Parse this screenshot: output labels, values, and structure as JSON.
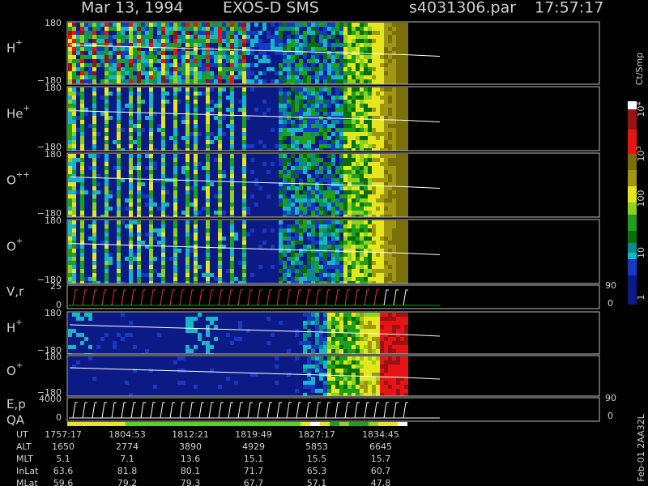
{
  "header": {
    "date": "Mar 13, 1994",
    "instrument": "EXOS-D SMS",
    "file": "s4031306.par",
    "time": "17:57:17"
  },
  "panels": [
    {
      "label": "H",
      "sup": "+",
      "top": "180",
      "bottom": "−180"
    },
    {
      "label": "He",
      "sup": "+",
      "top": "180",
      "bottom": "−180"
    },
    {
      "label": "O",
      "sup": "++",
      "top": "180",
      "bottom": "−180"
    },
    {
      "label": "O",
      "sup": "+",
      "top": "180",
      "bottom": "−180"
    },
    {
      "label": "V,r",
      "top": "25",
      "bottom": "0",
      "right_top": "90",
      "right_bottom": "0"
    },
    {
      "label": "H",
      "sup": "+",
      "top": "180",
      "bottom": "−180"
    },
    {
      "label": "O",
      "sup": "+",
      "top": "180",
      "bottom": "−180"
    },
    {
      "label": "E,p",
      "top": "4000",
      "bottom": "0",
      "right_top": "90",
      "right_bottom": "0"
    }
  ],
  "qa_label": "QA",
  "colorbar": {
    "unit": "Ct/Smp",
    "ticks": [
      {
        "base": "10",
        "exp": "4"
      },
      {
        "base": "10",
        "exp": "3"
      },
      {
        "base": "100"
      },
      {
        "base": "10"
      },
      {
        "base": "1"
      }
    ]
  },
  "stamp": "Feb-01 2AA32L",
  "ephemeris": {
    "rows": [
      {
        "name": "UT",
        "values": [
          "1757:17",
          "1804:53",
          "1812:21",
          "1819:49",
          "1827:17",
          "1834:45"
        ]
      },
      {
        "name": "ALT",
        "values": [
          "1650",
          "2774",
          "3890",
          "4929",
          "5853",
          "6645"
        ]
      },
      {
        "name": "MLT",
        "values": [
          "5.1",
          "7.1",
          "13.6",
          "15.1",
          "15.5",
          "15.7"
        ]
      },
      {
        "name": "InLat",
        "values": [
          "63.6",
          "81.8",
          "80.1",
          "71.7",
          "65.3",
          "60.7"
        ]
      },
      {
        "name": "MLat",
        "values": [
          "59.6",
          "79.2",
          "79.3",
          "67.7",
          "57.1",
          "47.8"
        ]
      }
    ]
  }
}
